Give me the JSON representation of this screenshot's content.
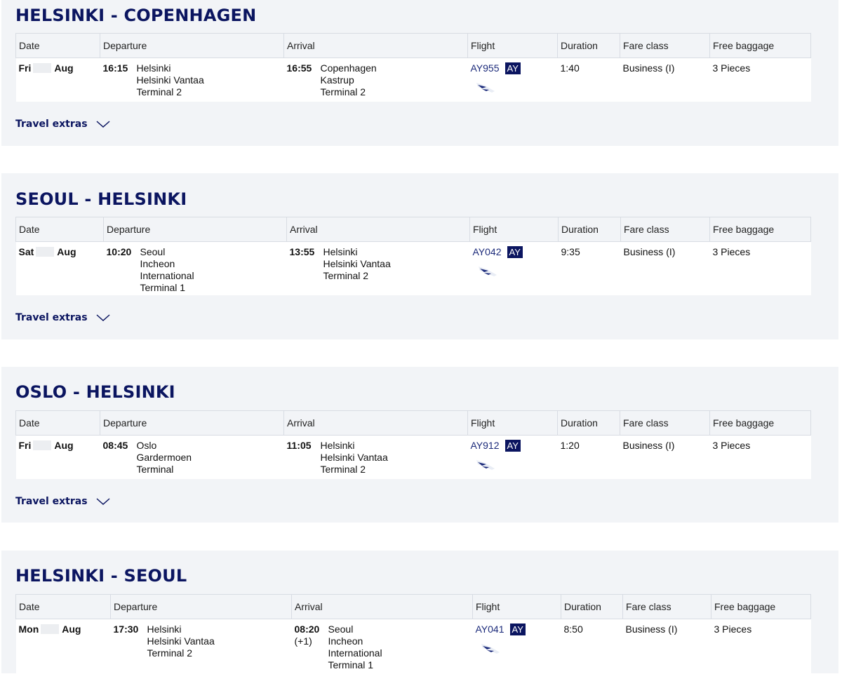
{
  "headers": {
    "date": "Date",
    "departure": "Departure",
    "arrival": "Arrival",
    "flight": "Flight",
    "duration": "Duration",
    "fare_class": "Fare class",
    "free_baggage": "Free baggage"
  },
  "extras_label": "Travel extras",
  "segments": [
    {
      "title": "HELSINKI - COPENHAGEN",
      "day": "Fri",
      "month": "Aug",
      "dep_time": "16:15",
      "dep_city": "Helsinki",
      "dep_airport": "Helsinki Vantaa",
      "dep_terminal": "Terminal 2",
      "arr_time": "16:55",
      "arr_city": "Copenhagen",
      "arr_airport": "Kastrup",
      "arr_terminal": "Terminal 2",
      "flight": "AY955",
      "carrier": "AY",
      "duration": "1:40",
      "fare": "Business (I)",
      "baggage": "3 Pieces"
    },
    {
      "title": "SEOUL - HELSINKI",
      "day": "Sat",
      "month": "Aug",
      "dep_time": "10:20",
      "dep_city": "Seoul",
      "dep_airport": "Incheon",
      "dep_airport2": "International",
      "dep_terminal": "Terminal 1",
      "arr_time": "13:55",
      "arr_city": "Helsinki",
      "arr_airport": "Helsinki Vantaa",
      "arr_terminal": "Terminal 2",
      "flight": "AY042",
      "carrier": "AY",
      "duration": "9:35",
      "fare": "Business (I)",
      "baggage": "3 Pieces"
    },
    {
      "title": "OSLO - HELSINKI",
      "day": "Fri",
      "month": "Aug",
      "dep_time": "08:45",
      "dep_city": "Oslo",
      "dep_airport": "Gardermoen",
      "dep_terminal": "Terminal",
      "arr_time": "11:05",
      "arr_city": "Helsinki",
      "arr_airport": "Helsinki Vantaa",
      "arr_terminal": "Terminal 2",
      "flight": "AY912",
      "carrier": "AY",
      "duration": "1:20",
      "fare": "Business (I)",
      "baggage": "3 Pieces"
    },
    {
      "title": "HELSINKI - SEOUL",
      "day": "Mon",
      "month": "Aug",
      "dep_time": "17:30",
      "dep_city": "Helsinki",
      "dep_airport": "Helsinki Vantaa",
      "dep_terminal": "Terminal 2",
      "arr_time": "08:20",
      "arr_day_offset": "(+1)",
      "arr_city": "Seoul",
      "arr_airport": "Incheon",
      "arr_airport2": "International",
      "arr_terminal": "Terminal 1",
      "flight": "AY041",
      "carrier": "AY",
      "duration": "8:50",
      "fare": "Business (I)",
      "baggage": "3 Pieces"
    }
  ]
}
